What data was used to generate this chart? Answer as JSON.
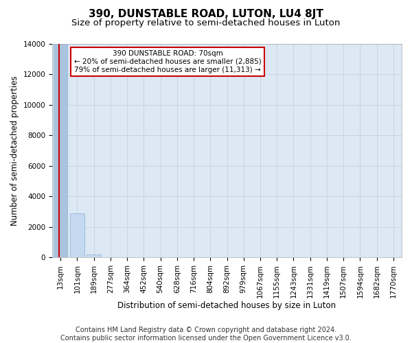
{
  "title": "390, DUNSTABLE ROAD, LUTON, LU4 8JT",
  "subtitle": "Size of property relative to semi-detached houses in Luton",
  "xlabel": "Distribution of semi-detached houses by size in Luton",
  "ylabel": "Number of semi-detached properties",
  "footer_line1": "Contains HM Land Registry data © Crown copyright and database right 2024.",
  "footer_line2": "Contains public sector information licensed under the Open Government Licence v3.0.",
  "annotation_line1": "390 DUNSTABLE ROAD: 70sqm",
  "annotation_line2": "← 20% of semi-detached houses are smaller (2,885)",
  "annotation_line3": "79% of semi-detached houses are larger (11,313) →",
  "bin_labels": [
    "13sqm",
    "101sqm",
    "189sqm",
    "277sqm",
    "364sqm",
    "452sqm",
    "540sqm",
    "628sqm",
    "716sqm",
    "804sqm",
    "892sqm",
    "979sqm",
    "1067sqm",
    "1155sqm",
    "1243sqm",
    "1331sqm",
    "1419sqm",
    "1507sqm",
    "1594sqm",
    "1682sqm",
    "1770sqm"
  ],
  "bar_values": [
    14100,
    2885,
    200,
    30,
    10,
    5,
    3,
    2,
    2,
    1,
    1,
    1,
    1,
    0,
    0,
    0,
    0,
    0,
    0,
    0,
    0
  ],
  "highlight_bar_index": 0,
  "vline_x_index": 0,
  "highlight_bar_color": "#aac4e0",
  "normal_bar_color": "#c5d9f1",
  "bar_edge_color": "#8ab0d0",
  "ylim": [
    0,
    14000
  ],
  "yticks": [
    0,
    2000,
    4000,
    6000,
    8000,
    10000,
    12000,
    14000
  ],
  "grid_color": "#c8d4e0",
  "bg_color": "#dce8f4",
  "title_fontsize": 11,
  "subtitle_fontsize": 9.5,
  "axis_fontsize": 8.5,
  "tick_fontsize": 7.5,
  "footer_fontsize": 7,
  "annotation_box_facecolor": "#ffffff",
  "annotation_border_color": "#cc0000",
  "vline_color": "#cc0000"
}
